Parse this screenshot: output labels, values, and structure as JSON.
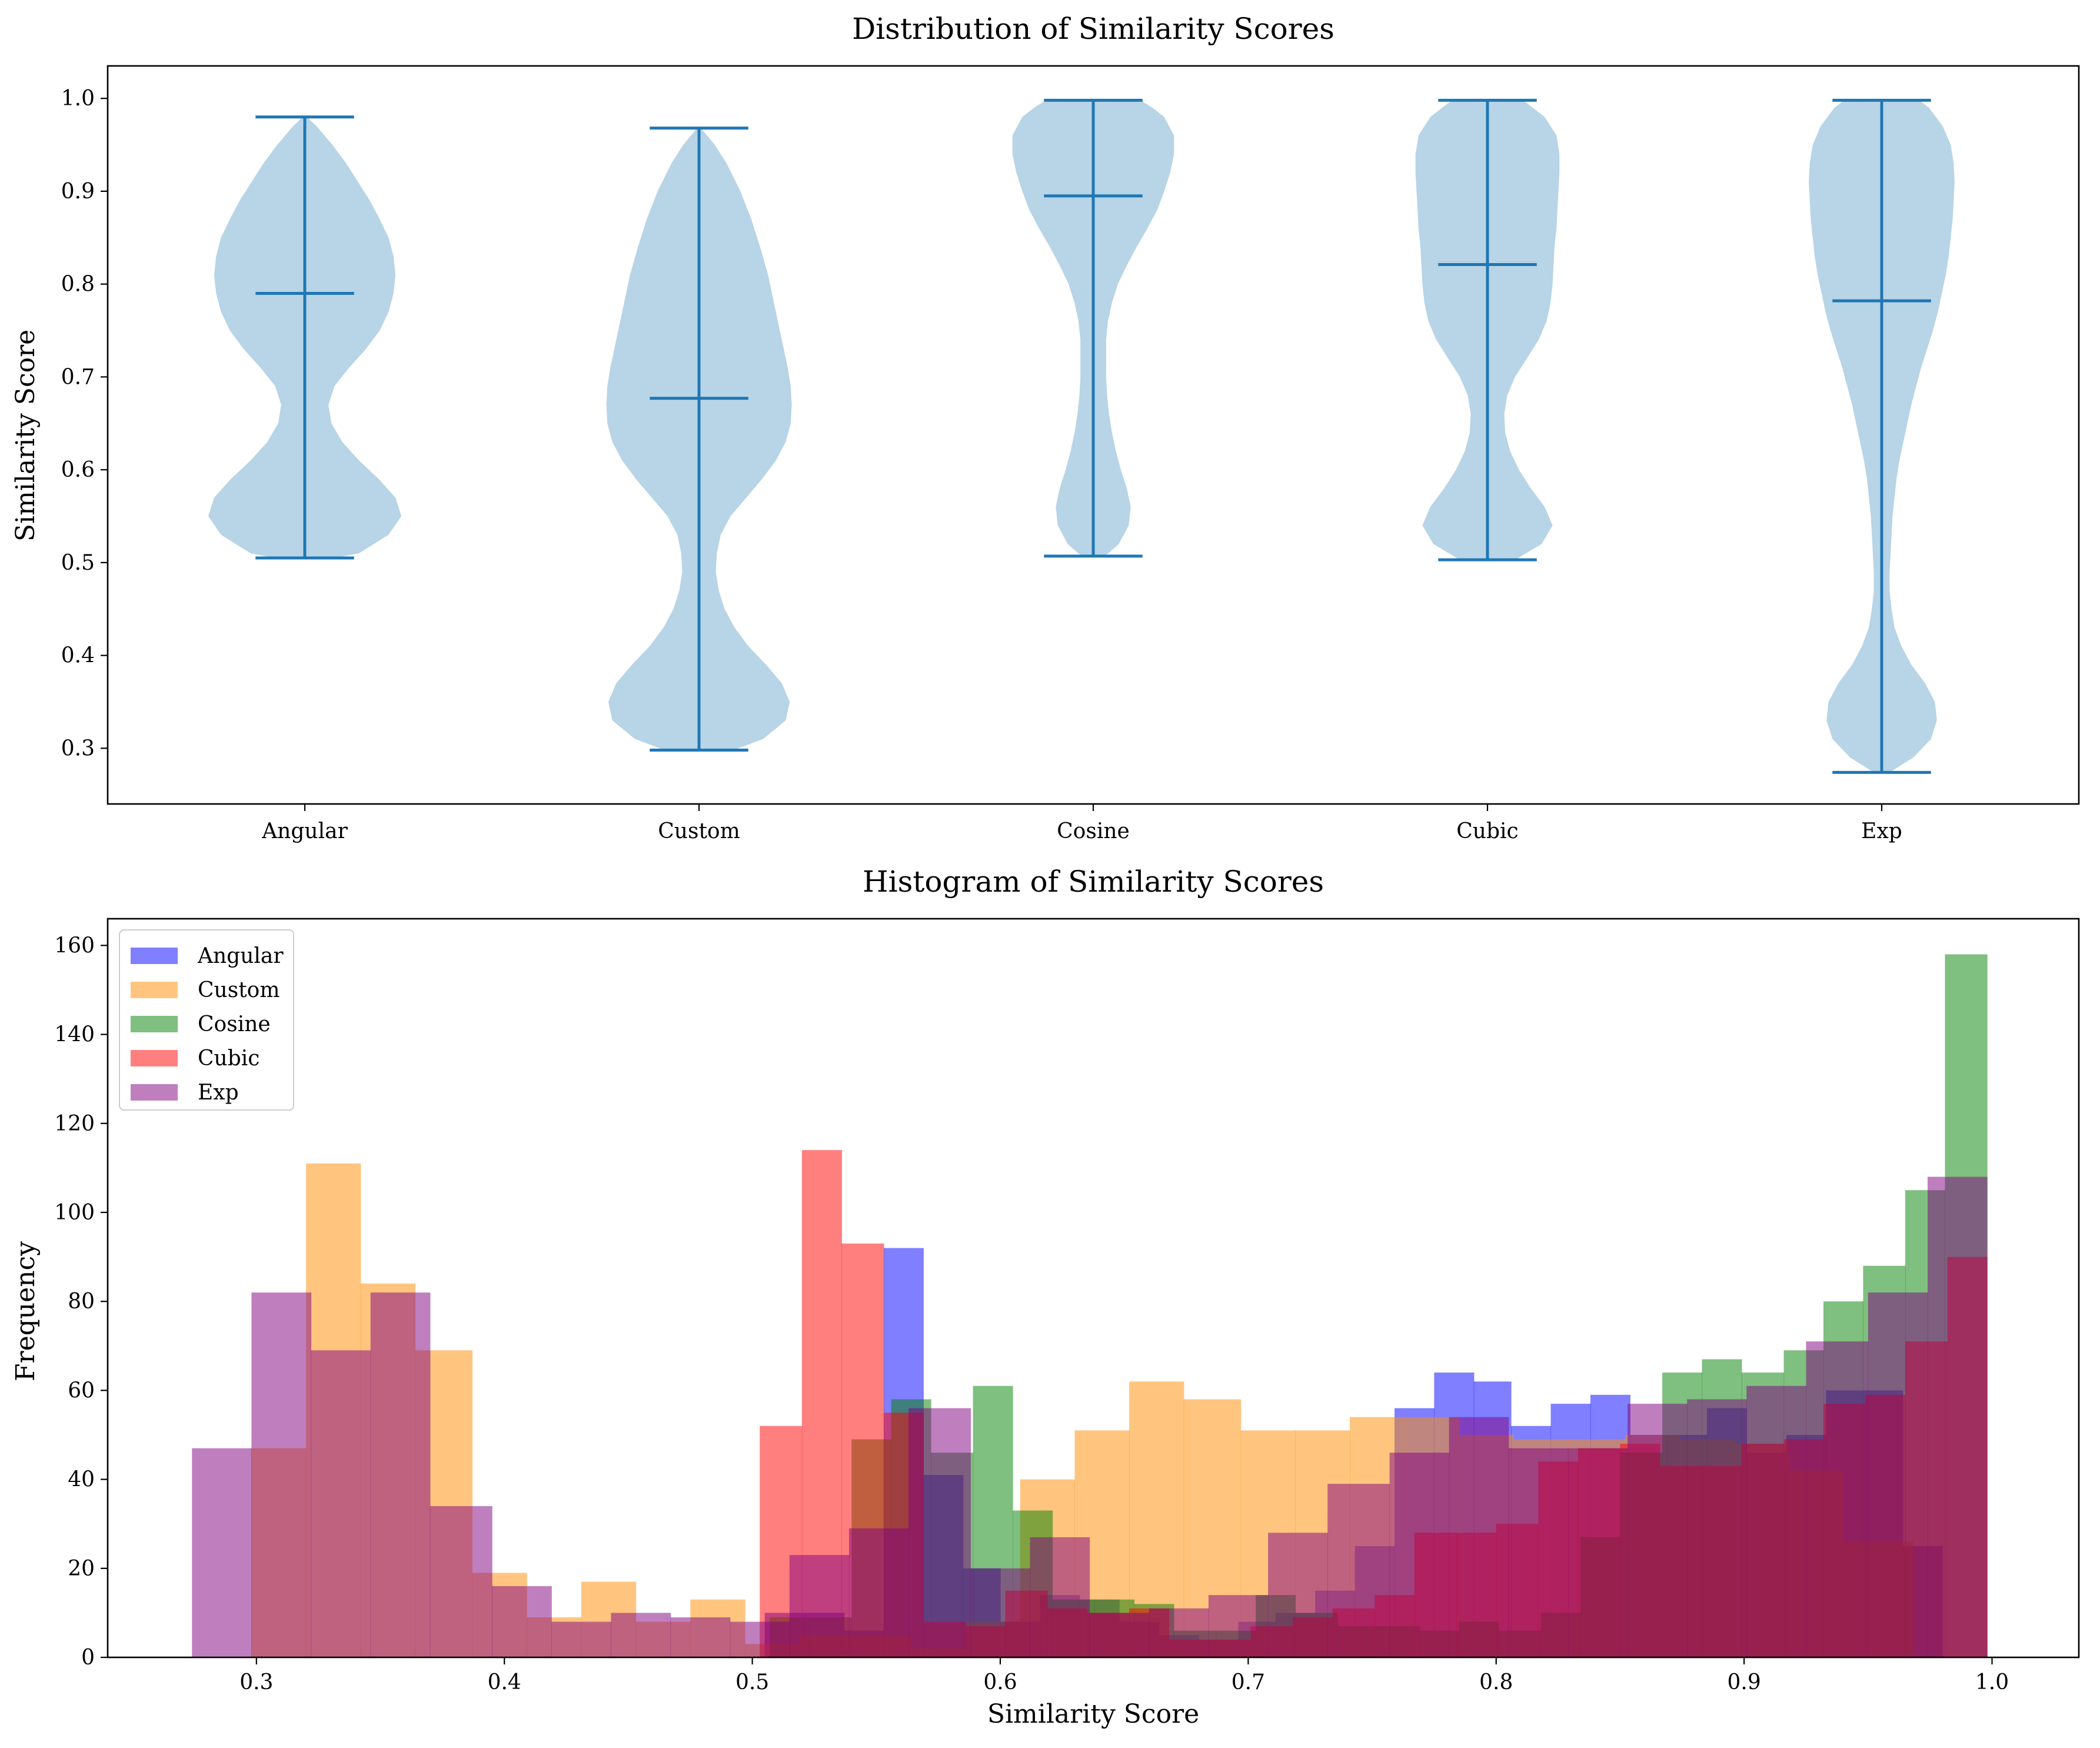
{
  "chart_data": [
    {
      "type": "violin",
      "title": "Distribution of Similarity Scores",
      "xlabel": "",
      "ylabel": "Similarity Score",
      "ylim": [
        0.24,
        1.035
      ],
      "yticks": [
        0.3,
        0.4,
        0.5,
        0.6,
        0.7,
        0.8,
        0.9,
        1.0
      ],
      "ytick_labels": [
        "0.3",
        "0.4",
        "0.5",
        "0.6",
        "0.7",
        "0.8",
        "0.9",
        "1.0"
      ],
      "categories": [
        "Angular",
        "Custom",
        "Cosine",
        "Cubic",
        "Exp"
      ],
      "fill_color": "#b8d4e7",
      "line_color": "#1f77b4",
      "series": [
        {
          "name": "Angular",
          "min": 0.505,
          "max": 0.98,
          "mean": 0.79,
          "profile": [
            [
              0.505,
              0.3
            ],
            [
              0.51,
              0.55
            ],
            [
              0.53,
              0.85
            ],
            [
              0.55,
              0.98
            ],
            [
              0.57,
              0.92
            ],
            [
              0.59,
              0.75
            ],
            [
              0.61,
              0.55
            ],
            [
              0.63,
              0.38
            ],
            [
              0.65,
              0.27
            ],
            [
              0.67,
              0.24
            ],
            [
              0.69,
              0.3
            ],
            [
              0.71,
              0.45
            ],
            [
              0.73,
              0.62
            ],
            [
              0.75,
              0.76
            ],
            [
              0.77,
              0.85
            ],
            [
              0.79,
              0.9
            ],
            [
              0.81,
              0.92
            ],
            [
              0.83,
              0.9
            ],
            [
              0.85,
              0.85
            ],
            [
              0.87,
              0.76
            ],
            [
              0.89,
              0.66
            ],
            [
              0.91,
              0.54
            ],
            [
              0.93,
              0.42
            ],
            [
              0.95,
              0.28
            ],
            [
              0.97,
              0.12
            ],
            [
              0.98,
              0.02
            ]
          ]
        },
        {
          "name": "Custom",
          "min": 0.298,
          "max": 0.968,
          "mean": 0.677,
          "profile": [
            [
              0.298,
              0.35
            ],
            [
              0.31,
              0.65
            ],
            [
              0.33,
              0.88
            ],
            [
              0.35,
              0.92
            ],
            [
              0.37,
              0.84
            ],
            [
              0.39,
              0.68
            ],
            [
              0.41,
              0.5
            ],
            [
              0.43,
              0.36
            ],
            [
              0.45,
              0.26
            ],
            [
              0.47,
              0.2
            ],
            [
              0.49,
              0.17
            ],
            [
              0.51,
              0.18
            ],
            [
              0.53,
              0.22
            ],
            [
              0.55,
              0.32
            ],
            [
              0.57,
              0.48
            ],
            [
              0.59,
              0.64
            ],
            [
              0.61,
              0.78
            ],
            [
              0.63,
              0.88
            ],
            [
              0.65,
              0.93
            ],
            [
              0.67,
              0.94
            ],
            [
              0.69,
              0.93
            ],
            [
              0.71,
              0.9
            ],
            [
              0.73,
              0.86
            ],
            [
              0.75,
              0.82
            ],
            [
              0.78,
              0.76
            ],
            [
              0.81,
              0.7
            ],
            [
              0.84,
              0.62
            ],
            [
              0.87,
              0.53
            ],
            [
              0.9,
              0.42
            ],
            [
              0.93,
              0.28
            ],
            [
              0.95,
              0.16
            ],
            [
              0.968,
              0.02
            ]
          ]
        },
        {
          "name": "Cosine",
          "min": 0.507,
          "max": 0.998,
          "mean": 0.895,
          "profile": [
            [
              0.507,
              0.12
            ],
            [
              0.52,
              0.26
            ],
            [
              0.54,
              0.36
            ],
            [
              0.56,
              0.38
            ],
            [
              0.58,
              0.34
            ],
            [
              0.6,
              0.28
            ],
            [
              0.62,
              0.23
            ],
            [
              0.64,
              0.19
            ],
            [
              0.66,
              0.16
            ],
            [
              0.68,
              0.14
            ],
            [
              0.7,
              0.13
            ],
            [
              0.72,
              0.13
            ],
            [
              0.74,
              0.13
            ],
            [
              0.76,
              0.15
            ],
            [
              0.78,
              0.19
            ],
            [
              0.8,
              0.25
            ],
            [
              0.82,
              0.34
            ],
            [
              0.84,
              0.44
            ],
            [
              0.86,
              0.55
            ],
            [
              0.88,
              0.65
            ],
            [
              0.9,
              0.72
            ],
            [
              0.92,
              0.78
            ],
            [
              0.94,
              0.82
            ],
            [
              0.96,
              0.82
            ],
            [
              0.98,
              0.72
            ],
            [
              0.99,
              0.6
            ],
            [
              0.998,
              0.48
            ]
          ]
        },
        {
          "name": "Cubic",
          "min": 0.503,
          "max": 0.998,
          "mean": 0.821,
          "profile": [
            [
              0.503,
              0.28
            ],
            [
              0.52,
              0.55
            ],
            [
              0.54,
              0.66
            ],
            [
              0.56,
              0.58
            ],
            [
              0.58,
              0.44
            ],
            [
              0.6,
              0.32
            ],
            [
              0.62,
              0.23
            ],
            [
              0.64,
              0.18
            ],
            [
              0.66,
              0.17
            ],
            [
              0.68,
              0.2
            ],
            [
              0.7,
              0.28
            ],
            [
              0.72,
              0.4
            ],
            [
              0.74,
              0.52
            ],
            [
              0.76,
              0.6
            ],
            [
              0.78,
              0.64
            ],
            [
              0.8,
              0.66
            ],
            [
              0.82,
              0.67
            ],
            [
              0.84,
              0.68
            ],
            [
              0.86,
              0.7
            ],
            [
              0.88,
              0.71
            ],
            [
              0.9,
              0.72
            ],
            [
              0.92,
              0.73
            ],
            [
              0.94,
              0.73
            ],
            [
              0.96,
              0.7
            ],
            [
              0.98,
              0.58
            ],
            [
              0.99,
              0.46
            ],
            [
              0.998,
              0.36
            ]
          ]
        },
        {
          "name": "Exp",
          "min": 0.274,
          "max": 0.998,
          "mean": 0.782,
          "profile": [
            [
              0.274,
              0.08
            ],
            [
              0.29,
              0.32
            ],
            [
              0.31,
              0.5
            ],
            [
              0.33,
              0.56
            ],
            [
              0.35,
              0.54
            ],
            [
              0.37,
              0.44
            ],
            [
              0.39,
              0.3
            ],
            [
              0.41,
              0.2
            ],
            [
              0.43,
              0.13
            ],
            [
              0.45,
              0.1
            ],
            [
              0.47,
              0.08
            ],
            [
              0.49,
              0.08
            ],
            [
              0.51,
              0.09
            ],
            [
              0.53,
              0.1
            ],
            [
              0.55,
              0.11
            ],
            [
              0.57,
              0.13
            ],
            [
              0.59,
              0.15
            ],
            [
              0.61,
              0.18
            ],
            [
              0.63,
              0.22
            ],
            [
              0.65,
              0.26
            ],
            [
              0.67,
              0.3
            ],
            [
              0.69,
              0.35
            ],
            [
              0.71,
              0.4
            ],
            [
              0.73,
              0.46
            ],
            [
              0.75,
              0.52
            ],
            [
              0.77,
              0.57
            ],
            [
              0.79,
              0.61
            ],
            [
              0.81,
              0.65
            ],
            [
              0.83,
              0.68
            ],
            [
              0.85,
              0.7
            ],
            [
              0.87,
              0.72
            ],
            [
              0.89,
              0.73
            ],
            [
              0.91,
              0.74
            ],
            [
              0.93,
              0.73
            ],
            [
              0.95,
              0.7
            ],
            [
              0.97,
              0.62
            ],
            [
              0.99,
              0.48
            ],
            [
              0.998,
              0.38
            ]
          ]
        }
      ]
    },
    {
      "type": "histogram",
      "title": "Histogram of Similarity Scores",
      "xlabel": "Similarity Score",
      "ylabel": "Frequency",
      "xlim": [
        0.24,
        1.035
      ],
      "ylim": [
        0,
        166
      ],
      "xticks": [
        0.3,
        0.4,
        0.5,
        0.6,
        0.7,
        0.8,
        0.9,
        1.0
      ],
      "xtick_labels": [
        "0.3",
        "0.4",
        "0.5",
        "0.6",
        "0.7",
        "0.8",
        "0.9",
        "1.0"
      ],
      "yticks": [
        0,
        20,
        40,
        60,
        80,
        100,
        120,
        140,
        160
      ],
      "ytick_labels": [
        "0",
        "20",
        "40",
        "60",
        "80",
        "100",
        "120",
        "140",
        "160"
      ],
      "legend_position": "top-left",
      "bar_alpha": 0.5,
      "series": [
        {
          "name": "Angular",
          "color": "#0000ff",
          "edges": [
            0.505,
            0.521,
            0.537,
            0.553,
            0.569,
            0.585,
            0.6,
            0.616,
            0.632,
            0.648,
            0.664,
            0.68,
            0.696,
            0.711,
            0.727,
            0.743,
            0.759,
            0.775,
            0.791,
            0.806,
            0.822,
            0.838,
            0.854,
            0.869,
            0.885,
            0.901,
            0.917,
            0.933,
            0.949,
            0.964,
            0.98
          ],
          "counts": [
            10,
            10,
            6,
            92,
            41,
            20,
            8,
            14,
            13,
            8,
            5,
            4,
            8,
            10,
            15,
            25,
            56,
            64,
            62,
            52,
            57,
            59,
            50,
            50,
            56,
            46,
            50,
            60,
            60,
            25
          ]
        },
        {
          "name": "Custom",
          "color": "#ff8c00",
          "edges": [
            0.298,
            0.32,
            0.342,
            0.364,
            0.387,
            0.409,
            0.431,
            0.453,
            0.475,
            0.497,
            0.519,
            0.542,
            0.564,
            0.586,
            0.608,
            0.63,
            0.652,
            0.674,
            0.697,
            0.719,
            0.741,
            0.763,
            0.785,
            0.807,
            0.829,
            0.852,
            0.874,
            0.896,
            0.918,
            0.94,
            0.968
          ],
          "counts": [
            47,
            111,
            84,
            69,
            19,
            9,
            17,
            8,
            13,
            3,
            5,
            5,
            2,
            8,
            40,
            51,
            62,
            58,
            51,
            51,
            54,
            54,
            50,
            49,
            49,
            50,
            49,
            48,
            42,
            26
          ]
        },
        {
          "name": "Cosine",
          "color": "#008000",
          "edges": [
            0.507,
            0.523,
            0.54,
            0.556,
            0.572,
            0.589,
            0.605,
            0.621,
            0.638,
            0.654,
            0.67,
            0.687,
            0.703,
            0.719,
            0.736,
            0.752,
            0.769,
            0.785,
            0.801,
            0.818,
            0.834,
            0.85,
            0.867,
            0.883,
            0.899,
            0.916,
            0.932,
            0.948,
            0.965,
            0.981,
            0.998
          ],
          "counts": [
            9,
            9,
            49,
            58,
            46,
            61,
            33,
            13,
            13,
            12,
            6,
            6,
            14,
            10,
            7,
            7,
            6,
            8,
            6,
            10,
            27,
            46,
            64,
            67,
            64,
            69,
            80,
            88,
            105,
            158
          ]
        },
        {
          "name": "Cubic",
          "color": "#ff0000",
          "edges": [
            0.503,
            0.52,
            0.536,
            0.553,
            0.569,
            0.586,
            0.602,
            0.619,
            0.635,
            0.652,
            0.668,
            0.685,
            0.701,
            0.718,
            0.734,
            0.751,
            0.767,
            0.784,
            0.8,
            0.817,
            0.833,
            0.85,
            0.866,
            0.883,
            0.899,
            0.916,
            0.932,
            0.949,
            0.965,
            0.982,
            0.998
          ],
          "counts": [
            52,
            114,
            93,
            55,
            8,
            7,
            15,
            11,
            10,
            11,
            4,
            4,
            7,
            9,
            11,
            14,
            28,
            28,
            30,
            44,
            47,
            48,
            43,
            43,
            48,
            49,
            57,
            59,
            71,
            90
          ]
        },
        {
          "name": "Exp",
          "color": "#800080",
          "edges": [
            0.274,
            0.298,
            0.322,
            0.346,
            0.37,
            0.395,
            0.419,
            0.443,
            0.467,
            0.491,
            0.515,
            0.539,
            0.563,
            0.588,
            0.612,
            0.636,
            0.66,
            0.684,
            0.708,
            0.732,
            0.757,
            0.781,
            0.805,
            0.829,
            0.853,
            0.877,
            0.901,
            0.925,
            0.95,
            0.974,
            0.998
          ],
          "counts": [
            47,
            82,
            69,
            82,
            34,
            16,
            8,
            10,
            9,
            8,
            23,
            29,
            56,
            20,
            27,
            10,
            11,
            14,
            28,
            39,
            46,
            54,
            47,
            47,
            57,
            58,
            61,
            71,
            82,
            108
          ]
        }
      ]
    }
  ]
}
